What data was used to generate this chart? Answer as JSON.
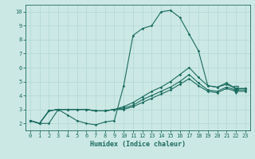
{
  "xlabel": "Humidex (Indice chaleur)",
  "xlim": [
    -0.5,
    23.5
  ],
  "ylim": [
    1.5,
    10.5
  ],
  "xticks": [
    0,
    1,
    2,
    3,
    4,
    5,
    6,
    7,
    8,
    9,
    10,
    11,
    12,
    13,
    14,
    15,
    16,
    17,
    18,
    19,
    20,
    21,
    22,
    23
  ],
  "yticks": [
    2,
    3,
    4,
    5,
    6,
    7,
    8,
    9,
    10
  ],
  "bg_color": "#cce8e5",
  "line_color": "#1a6b5e",
  "grid_color": "#b0d8d4",
  "line1_x": [
    0,
    1,
    2,
    3,
    4,
    5,
    6,
    7,
    8,
    9,
    10,
    11,
    12,
    13,
    14,
    15,
    16,
    17,
    18,
    19,
    20,
    21,
    22,
    23
  ],
  "line1_y": [
    2.2,
    2.0,
    2.0,
    3.0,
    2.6,
    2.2,
    2.0,
    1.9,
    2.1,
    2.2,
    4.7,
    8.3,
    8.8,
    9.0,
    10.0,
    10.1,
    9.6,
    8.4,
    7.2,
    4.7,
    4.6,
    4.9,
    4.5,
    4.5
  ],
  "line2_x": [
    0,
    1,
    2,
    3,
    4,
    5,
    6,
    7,
    8,
    9,
    10,
    11,
    12,
    13,
    14,
    15,
    16,
    17,
    18,
    19,
    20,
    21,
    22,
    23
  ],
  "line2_y": [
    2.2,
    2.0,
    2.9,
    3.0,
    3.0,
    3.0,
    3.0,
    2.9,
    2.9,
    3.0,
    3.2,
    3.5,
    3.9,
    4.3,
    4.6,
    5.0,
    5.5,
    6.0,
    5.3,
    4.7,
    4.6,
    4.8,
    4.5,
    4.5
  ],
  "line3_x": [
    0,
    1,
    2,
    3,
    4,
    5,
    6,
    7,
    8,
    9,
    10,
    11,
    12,
    13,
    14,
    15,
    16,
    17,
    18,
    19,
    20,
    21,
    22,
    23
  ],
  "line3_y": [
    2.2,
    2.0,
    2.9,
    3.0,
    3.0,
    3.0,
    3.0,
    2.9,
    2.9,
    3.0,
    3.1,
    3.3,
    3.7,
    4.0,
    4.3,
    4.6,
    5.0,
    5.5,
    4.9,
    4.4,
    4.3,
    4.6,
    4.4,
    4.4
  ],
  "line4_x": [
    0,
    1,
    2,
    3,
    4,
    5,
    6,
    7,
    8,
    9,
    10,
    11,
    12,
    13,
    14,
    15,
    16,
    17,
    18,
    19,
    20,
    21,
    22,
    23
  ],
  "line4_y": [
    2.2,
    2.0,
    2.9,
    3.0,
    3.0,
    3.0,
    3.0,
    2.9,
    2.9,
    3.0,
    3.0,
    3.2,
    3.5,
    3.8,
    4.1,
    4.4,
    4.8,
    5.2,
    4.7,
    4.3,
    4.2,
    4.5,
    4.3,
    4.3
  ]
}
